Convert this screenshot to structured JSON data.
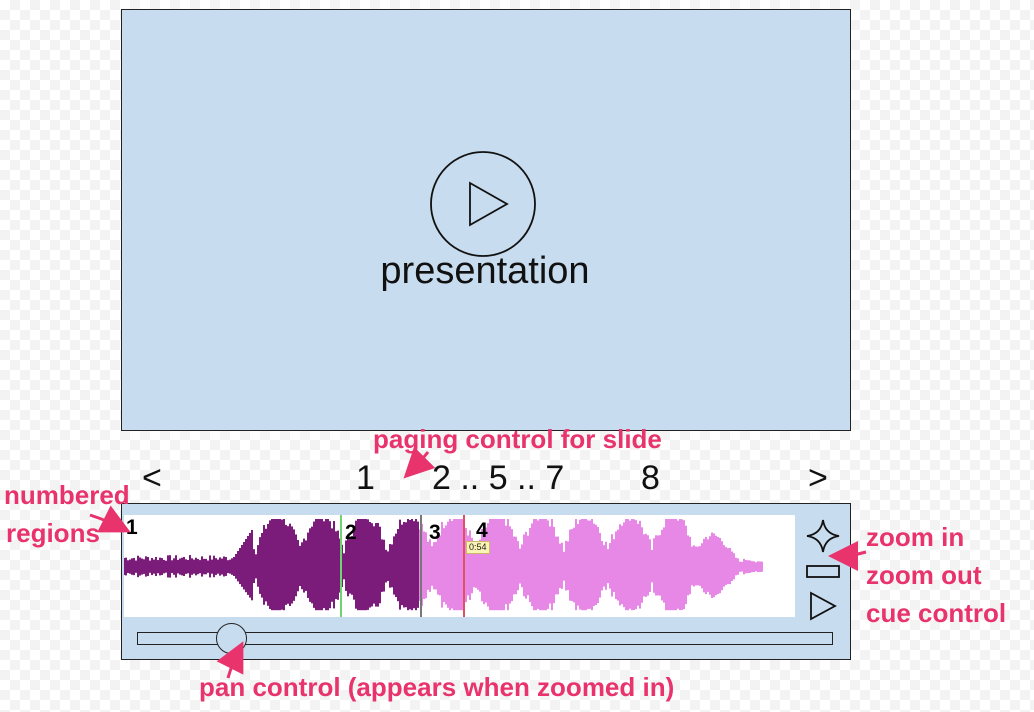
{
  "video": {
    "label": "presentation"
  },
  "pager": {
    "prev": "<",
    "next": ">",
    "pages": [
      "1",
      "2 .. 5 .. 7",
      "8"
    ]
  },
  "regions": [
    "1",
    "2",
    "3",
    "4"
  ],
  "cursor_time": "0:54",
  "playback_progress": 0.44,
  "pan_position": 0.13,
  "controls": {
    "zoom_in": "zoom-in-icon",
    "zoom_out": "zoom-out-icon",
    "cue": "cue-play-icon"
  },
  "annotations": {
    "paging": "paging control for slide",
    "numbered_line1": "numbered",
    "numbered_line2": "regions",
    "zoom_in": "zoom in",
    "zoom_out": "zoom out",
    "cue": "cue control",
    "pan": "pan control (appears when zoomed in)"
  },
  "colors": {
    "panel": "#c8dcef",
    "played": "#7b1b7a",
    "unplayed": "#e788e6",
    "annotation": "#e8336c",
    "marker_green": "#6fd46f",
    "marker_grey": "#777777",
    "marker_red": "#e05060"
  }
}
